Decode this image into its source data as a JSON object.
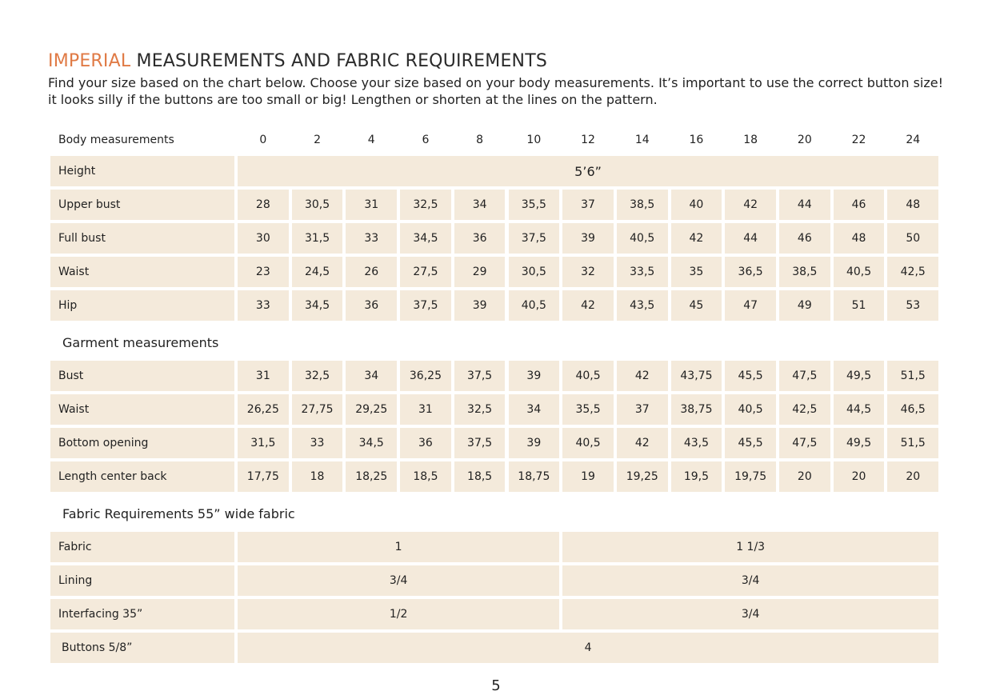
{
  "title": {
    "accent": "IMPERIAL",
    "rest": " MEASUREMENTS AND FABRIC REQUIREMENTS"
  },
  "intro": "Find your size based on the chart below. Choose your size based on your body measurements. It’s important to use the correct button size! it looks silly if the buttons are too small or big! Lengthen or shorten at the lines on the pattern.",
  "colors": {
    "accent": "#e07a45",
    "cell_background": "#f4eadb"
  },
  "body": {
    "header": "Body measurements",
    "sizes": [
      "0",
      "2",
      "4",
      "6",
      "8",
      "10",
      "12",
      "14",
      "16",
      "18",
      "20",
      "22",
      "24"
    ],
    "height": {
      "label": "Height",
      "value": "5’6”"
    },
    "rows": [
      {
        "label": "Upper bust",
        "values": [
          "28",
          "30,5",
          "31",
          "32,5",
          "34",
          "35,5",
          "37",
          "38,5",
          "40",
          "42",
          "44",
          "46",
          "48"
        ]
      },
      {
        "label": "Full bust",
        "values": [
          "30",
          "31,5",
          "33",
          "34,5",
          "36",
          "37,5",
          "39",
          "40,5",
          "42",
          "44",
          "46",
          "48",
          "50"
        ]
      },
      {
        "label": "Waist",
        "values": [
          "23",
          "24,5",
          "26",
          "27,5",
          "29",
          "30,5",
          "32",
          "33,5",
          "35",
          "36,5",
          "38,5",
          "40,5",
          "42,5"
        ]
      },
      {
        "label": "Hip",
        "values": [
          "33",
          "34,5",
          "36",
          "37,5",
          "39",
          "40,5",
          "42",
          "43,5",
          "45",
          "47",
          "49",
          "51",
          "53"
        ]
      }
    ]
  },
  "garment": {
    "header": "Garment measurements",
    "rows": [
      {
        "label": "Bust",
        "values": [
          "31",
          "32,5",
          "34",
          "36,25",
          "37,5",
          "39",
          "40,5",
          "42",
          "43,75",
          "45,5",
          "47,5",
          "49,5",
          "51,5"
        ]
      },
      {
        "label": "Waist",
        "values": [
          "26,25",
          "27,75",
          "29,25",
          "31",
          "32,5",
          "34",
          "35,5",
          "37",
          "38,75",
          "40,5",
          "42,5",
          "44,5",
          "46,5"
        ]
      },
      {
        "label": "Bottom opening",
        "values": [
          "31,5",
          "33",
          "34,5",
          "36",
          "37,5",
          "39",
          "40,5",
          "42",
          "43,5",
          "45,5",
          "47,5",
          "49,5",
          "51,5"
        ]
      },
      {
        "label": "Length center back",
        "values": [
          "17,75",
          "18",
          "18,25",
          "18,5",
          "18,5",
          "18,75",
          "19",
          "19,25",
          "19,5",
          "19,75",
          "20",
          "20",
          "20"
        ]
      }
    ]
  },
  "fabric": {
    "header": "Fabric Requirements 55” wide fabric",
    "rows": [
      {
        "label": "Fabric",
        "values": [
          "1",
          "1 1/3"
        ]
      },
      {
        "label": "Lining",
        "values": [
          "3/4",
          "3/4"
        ]
      },
      {
        "label": "Interfacing 35”",
        "values": [
          "1/2",
          "3/4"
        ]
      }
    ],
    "buttons": {
      "label": "Buttons 5/8”",
      "value": "4"
    }
  },
  "page_number": "5"
}
